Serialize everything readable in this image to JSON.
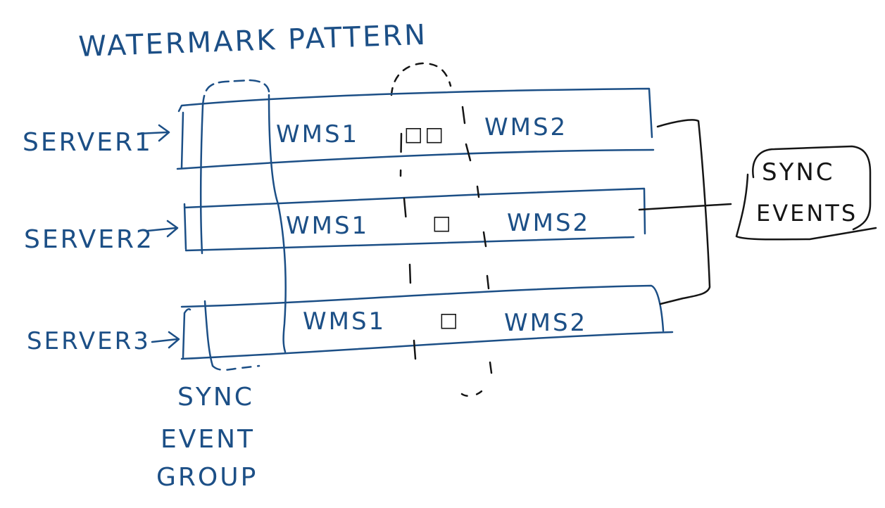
{
  "title": "WATERMARK PATTERN",
  "colors": {
    "ink_blue": "#1c4f86",
    "ink_black": "#151515",
    "background": "#ffffff"
  },
  "servers": [
    {
      "label": "SERVER1",
      "segments": [
        "WMS1",
        "□□",
        "WMS2"
      ]
    },
    {
      "label": "SERVER2",
      "segments": [
        "WMS1",
        "□",
        "WMS2"
      ]
    },
    {
      "label": "SERVER3",
      "segments": [
        "WMS1",
        "□",
        "WMS2"
      ]
    }
  ],
  "sync_event_group": {
    "lines": [
      "SYNC",
      "EVENT",
      "GROUP"
    ]
  },
  "sync_events": {
    "lines": [
      "SYNC",
      "EVENTS"
    ]
  }
}
